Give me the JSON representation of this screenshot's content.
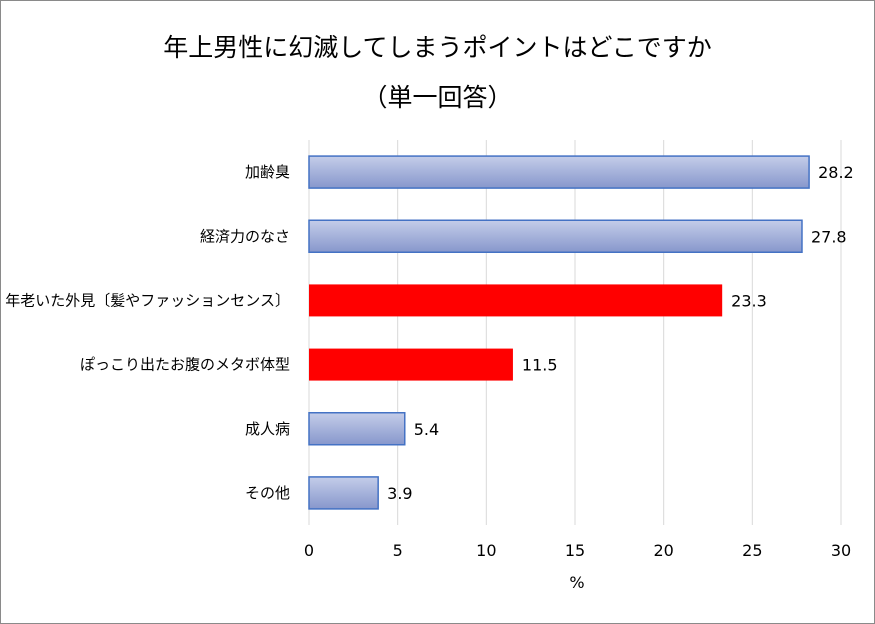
{
  "chart_data": {
    "type": "bar",
    "orientation": "horizontal",
    "title": "年上男性に幻滅してしまうポイントはどこですか",
    "subtitle": "（単一回答）",
    "xlabel": "%",
    "ylabel": "",
    "xlim": [
      0,
      30
    ],
    "xticks": [
      "0",
      "5",
      "10",
      "15",
      "20",
      "25",
      "30"
    ],
    "grid": true,
    "legend": "none",
    "categories": [
      "加齢臭",
      "経済力のなさ",
      "年老いた外見〔髪やファッションセンス〕",
      "ぽっこり出たお腹のメタボ体型",
      "成人病",
      "その他"
    ],
    "values": [
      28.2,
      27.8,
      23.3,
      11.5,
      5.4,
      3.9
    ],
    "value_labels": [
      "28.2",
      "27.8",
      "23.3",
      "11.5",
      "5.4",
      "3.9"
    ],
    "highlighted": [
      false,
      false,
      true,
      true,
      false,
      false
    ],
    "colors": {
      "default_fill_light": "#c4cde9",
      "default_fill_dark": "#8797cc",
      "default_border": "#4472c4",
      "highlight_fill": "#ff0000",
      "gridline": "#d9d9d9"
    }
  }
}
